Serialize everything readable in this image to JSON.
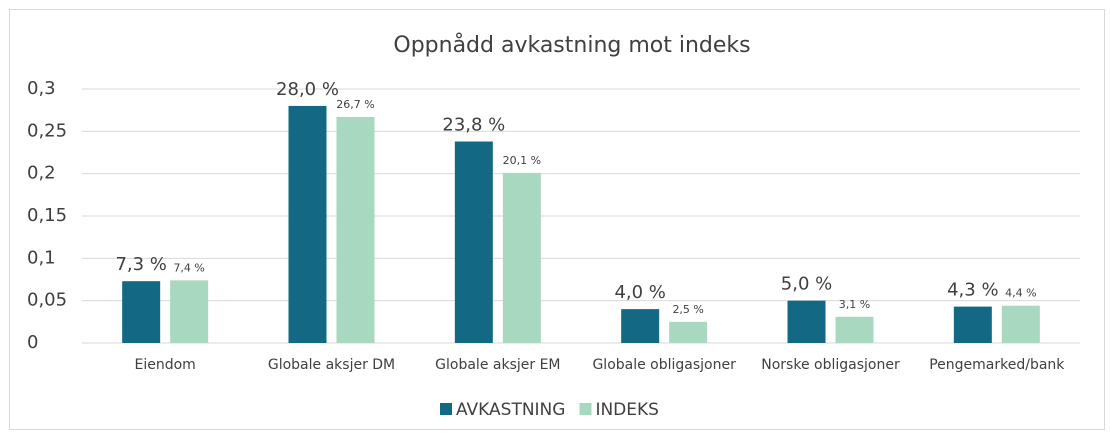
{
  "chart_data": {
    "type": "bar",
    "title": "Oppnådd avkastning mot indeks",
    "categories": [
      "Eiendom",
      "Globale aksjer DM",
      "Globale aksjer EM",
      "Globale obligasjoner",
      "Norske obligasjoner",
      "Pengemarked/bank"
    ],
    "series": [
      {
        "name": "AVKASTNING",
        "color": "#136983",
        "values": [
          0.073,
          0.28,
          0.238,
          0.04,
          0.05,
          0.043
        ],
        "value_labels": [
          "7,3 %",
          "28,0 %",
          "23,8 %",
          "4,0 %",
          "5,0 %",
          "4,3 %"
        ]
      },
      {
        "name": "INDEKS",
        "color": "#a8d8c0",
        "values": [
          0.074,
          0.267,
          0.201,
          0.025,
          0.031,
          0.044
        ],
        "value_labels": [
          "7,4 %",
          "26,7 %",
          "20,1 %",
          "2,5 %",
          "3,1 %",
          "4,4 %"
        ]
      }
    ],
    "ylim": [
      0,
      0.3
    ],
    "yticks": [
      0,
      {
        "value": 0.05,
        "label": "0,05"
      },
      {
        "value": 0.1,
        "label": "0,1"
      },
      {
        "value": 0.15,
        "label": "0,15"
      },
      {
        "value": 0.2,
        "label": "0,2"
      },
      {
        "value": 0.25,
        "label": "0,25"
      },
      {
        "value": 0.3,
        "label": "0,3"
      }
    ],
    "grid": true,
    "legend": "bottom"
  }
}
